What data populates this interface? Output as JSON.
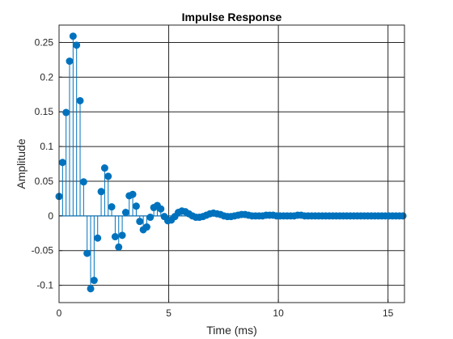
{
  "chart_data": {
    "type": "stem",
    "title": "Impulse Response",
    "xlabel": "Time (ms)",
    "ylabel": "Amplitude",
    "xlim": [
      0,
      15.75
    ],
    "ylim": [
      -0.125,
      0.275
    ],
    "x_ticks": [
      0,
      5,
      10,
      15
    ],
    "x_tick_labels": [
      "0",
      "5",
      "10",
      "15"
    ],
    "y_ticks": [
      -0.1,
      -0.05,
      0,
      0.05,
      0.1,
      0.15,
      0.2,
      0.25
    ],
    "y_tick_labels": [
      "-0.1",
      "-0.05",
      "0",
      "0.05",
      "0.1",
      "0.15",
      "0.2",
      "0.25"
    ],
    "grid": true,
    "color": "#0072BD",
    "sample_interval": 0.16,
    "series": [
      {
        "values": [
          0.028,
          0.077,
          0.149,
          0.223,
          0.259,
          0.246,
          0.166,
          0.049,
          -0.054,
          -0.105,
          -0.093,
          -0.032,
          0.035,
          0.069,
          0.057,
          0.013,
          -0.03,
          -0.045,
          -0.028,
          0.005,
          0.029,
          0.031,
          0.014,
          -0.008,
          -0.02,
          -0.016,
          -0.002,
          0.012,
          0.015,
          0.01,
          -0.001,
          -0.007,
          -0.006,
          -0.001,
          0.005,
          0.007,
          0.006,
          0.003,
          0.0,
          -0.002,
          -0.002,
          -0.001,
          0.001,
          0.003,
          0.004,
          0.003,
          0.002,
          0.0,
          -0.001,
          -0.001,
          0.0,
          0.001,
          0.002,
          0.002,
          0.001,
          0.0,
          0.0,
          0.0,
          0.0,
          0.001,
          0.001,
          0.001,
          0.0,
          0.0,
          0.0,
          0.0,
          0.0,
          0.0,
          0.001,
          0.001,
          0.0,
          0.0,
          0.0,
          0.0,
          0.0,
          0.0,
          0.0,
          0.0,
          0.0,
          0.0,
          0.0,
          0.0,
          0.0,
          0.0,
          0.0,
          0.0,
          0.0,
          0.0,
          0.0,
          0.0,
          0.0,
          0.0,
          0.0,
          0.0,
          0.0,
          0.0,
          0.0,
          0.0,
          0.0
        ]
      }
    ]
  }
}
